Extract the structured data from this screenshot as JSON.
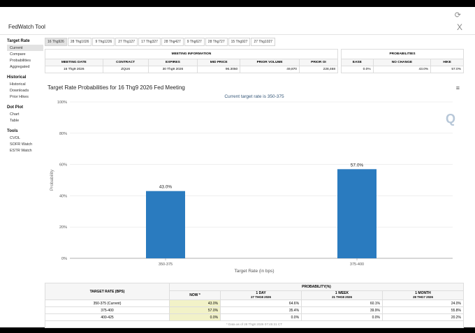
{
  "app": {
    "title": "FedWatch Tool",
    "close_glyph": "X",
    "refresh_glyph": "⟳"
  },
  "sidebar": {
    "groups": [
      {
        "heading": "Target Rate",
        "items": [
          "Current",
          "Compare",
          "Probabilities",
          "Aggregated"
        ]
      },
      {
        "heading": "Historical",
        "items": [
          "Historical",
          "Downloads",
          "Prior Hikes"
        ]
      },
      {
        "heading": "Dot Plot",
        "items": [
          "Chart",
          "Table"
        ]
      },
      {
        "heading": "Tools",
        "items": [
          "CVOL",
          "SOFR Watch",
          "ESTR Watch"
        ]
      }
    ],
    "active_item": "Current"
  },
  "tabs": [
    "16 Thg926",
    "28 Thg1026",
    "9 Thg1226",
    "27 Thg127",
    "17 Thg327",
    "28 Thg427",
    "9 Thg627",
    "28 Thg727",
    "15 Thg927",
    "27 Thg1027"
  ],
  "active_tab": "16 Thg926",
  "meeting_info": {
    "heading": "MEETING INFORMATION",
    "columns": [
      "MEETING DATE",
      "CONTRACT",
      "EXPIRES",
      "MID PRICE",
      "PRIOR VOLUME",
      "PRIOR OI"
    ],
    "row": [
      "16 Thg9 2026",
      "ZQU6",
      "30 Thg9 2026",
      "96.3050",
      "49,870",
      "228,468"
    ]
  },
  "probabilities": {
    "heading": "PROBABILITIES",
    "columns": [
      "EASE",
      "NO CHANGE",
      "HIKE"
    ],
    "row": [
      "0.0%",
      "43.0%",
      "57.0%"
    ]
  },
  "chart_title": "Target Rate Probabilities for 16 Thg9 2026 Fed Meeting",
  "chart_menu_glyph": "≡",
  "chart_logo": "Q",
  "chart_data": {
    "type": "bar",
    "title": "Current target rate is 350-375",
    "categories": [
      "350-375",
      "375-400"
    ],
    "values": [
      43.0,
      57.0
    ],
    "data_labels": [
      "43.0%",
      "57.0%"
    ],
    "xlabel": "Target Rate (in bps)",
    "ylabel": "Probability",
    "ylim": [
      0,
      100
    ],
    "yticks": [
      "0%",
      "20%",
      "40%",
      "60%",
      "80%",
      "100%"
    ],
    "grid": true,
    "bar_color": "#2a7bbf"
  },
  "bottom_table": {
    "col_target": "TARGET RATE (BPS)",
    "col_prob": "PROBABILITY(%)",
    "subcols": [
      {
        "label": "NOW *",
        "sub": ""
      },
      {
        "label": "1 DAY",
        "sub": "27 THG8 2026"
      },
      {
        "label": "1 WEEK",
        "sub": "21 THG8 2026"
      },
      {
        "label": "1 MONTH",
        "sub": "28 THG7 2026"
      }
    ],
    "rows": [
      [
        "350-375 (Current)",
        "43.0%",
        "64.6%",
        "60.1%",
        "24.0%"
      ],
      [
        "375-400",
        "57.0%",
        "35.4%",
        "39.9%",
        "55.8%"
      ],
      [
        "400-425",
        "0.0%",
        "0.0%",
        "0.0%",
        "20.2%"
      ]
    ],
    "footnote": "* Data as of 28 Thg8 2026 07:45:31 CT"
  }
}
